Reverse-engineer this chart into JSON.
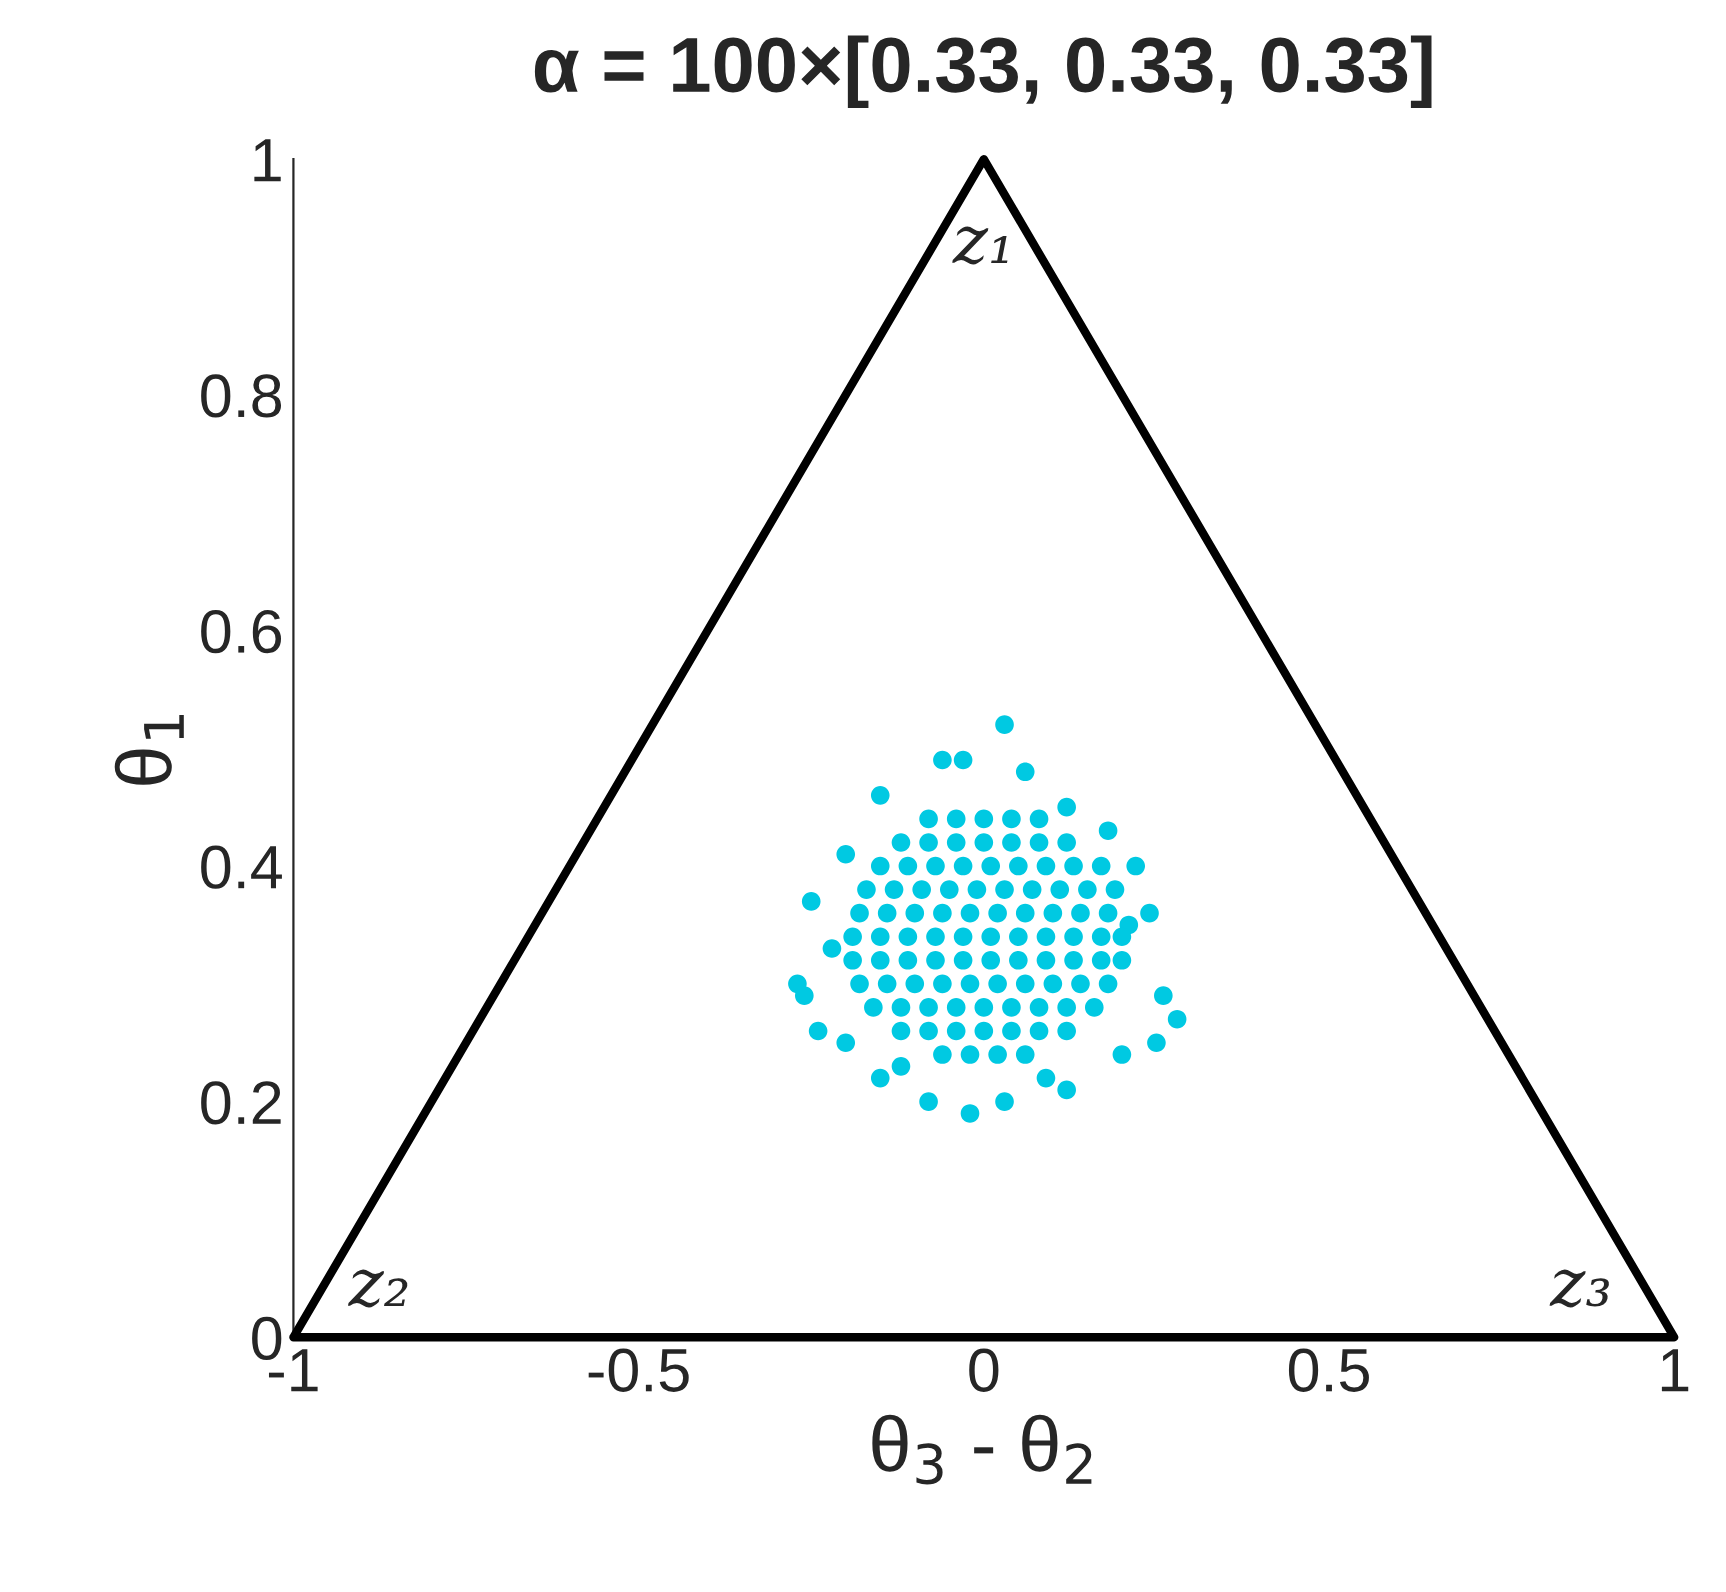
{
  "chart_data": {
    "type": "scatter",
    "title": "α = 100×[0.33, 0.33, 0.33]",
    "xlabel": "θ$_{3}$ - θ$_{2}$",
    "ylabel": "θ$_{1}$",
    "xlim": [
      -1,
      1
    ],
    "ylim": [
      0,
      1
    ],
    "xticks": [
      {
        "value": -1,
        "label": "-1"
      },
      {
        "value": -0.5,
        "label": "-0.5"
      },
      0,
      0.5,
      1
    ],
    "yticks": [
      0,
      0.2,
      0.4,
      0.6,
      0.8,
      1
    ],
    "grid": false,
    "legend": false,
    "marker": "circle",
    "annotations": [
      "z₁",
      "z₂",
      "z₃"
    ],
    "series": [
      {
        "color": "#00c9e2",
        "x": [
          0.03,
          -0.06,
          -0.03,
          0.06,
          -0.15,
          0.12,
          0.18,
          0.22,
          -0.2,
          -0.25,
          0.24,
          0.21,
          -0.22,
          -0.27,
          -0.26,
          0.26,
          0.28,
          0.25,
          0.2,
          -0.24,
          -0.2,
          -0.15,
          -0.08,
          0.03,
          0.12,
          -0.02,
          0.09,
          -0.12,
          -0.08,
          -0.04,
          0,
          0.04,
          0.08,
          -0.12,
          -0.08,
          -0.04,
          0,
          0.04,
          0.08,
          0.12,
          -0.15,
          -0.11,
          -0.07,
          -0.03,
          0.01,
          0.05,
          0.09,
          0.13,
          0.17,
          -0.17,
          -0.13,
          -0.09,
          -0.05,
          -0.01,
          0.03,
          0.07,
          0.11,
          0.15,
          0.19,
          -0.18,
          -0.14,
          -0.1,
          -0.06,
          -0.02,
          0.02,
          0.06,
          0.1,
          0.14,
          0.18,
          -0.19,
          -0.15,
          -0.11,
          -0.07,
          -0.03,
          0.01,
          0.05,
          0.09,
          0.13,
          0.17,
          0.2,
          -0.19,
          -0.15,
          -0.11,
          -0.07,
          -0.03,
          0.01,
          0.05,
          0.09,
          0.13,
          0.17,
          0.2,
          -0.18,
          -0.14,
          -0.1,
          -0.06,
          -0.02,
          0.02,
          0.06,
          0.1,
          0.14,
          0.18,
          -0.16,
          -0.12,
          -0.08,
          -0.04,
          0,
          0.04,
          0.08,
          0.12,
          0.16,
          -0.12,
          -0.08,
          -0.04,
          0,
          0.04,
          0.08,
          0.12,
          -0.06,
          -0.02,
          0.02,
          0.06
        ],
        "values": [
          0.52,
          0.49,
          0.49,
          0.48,
          0.46,
          0.45,
          0.43,
          0.4,
          0.41,
          0.37,
          0.36,
          0.35,
          0.33,
          0.3,
          0.29,
          0.29,
          0.27,
          0.25,
          0.24,
          0.26,
          0.25,
          0.22,
          0.2,
          0.2,
          0.21,
          0.19,
          0.22,
          0.23,
          0.44,
          0.44,
          0.44,
          0.44,
          0.44,
          0.42,
          0.42,
          0.42,
          0.42,
          0.42,
          0.42,
          0.42,
          0.4,
          0.4,
          0.4,
          0.4,
          0.4,
          0.4,
          0.4,
          0.4,
          0.4,
          0.38,
          0.38,
          0.38,
          0.38,
          0.38,
          0.38,
          0.38,
          0.38,
          0.38,
          0.38,
          0.36,
          0.36,
          0.36,
          0.36,
          0.36,
          0.36,
          0.36,
          0.36,
          0.36,
          0.36,
          0.34,
          0.34,
          0.34,
          0.34,
          0.34,
          0.34,
          0.34,
          0.34,
          0.34,
          0.34,
          0.34,
          0.32,
          0.32,
          0.32,
          0.32,
          0.32,
          0.32,
          0.32,
          0.32,
          0.32,
          0.32,
          0.32,
          0.3,
          0.3,
          0.3,
          0.3,
          0.3,
          0.3,
          0.3,
          0.3,
          0.3,
          0.3,
          0.28,
          0.28,
          0.28,
          0.28,
          0.28,
          0.28,
          0.28,
          0.28,
          0.28,
          0.26,
          0.26,
          0.26,
          0.26,
          0.26,
          0.26,
          0.26,
          0.24,
          0.24,
          0.24,
          0.24
        ]
      }
    ]
  }
}
